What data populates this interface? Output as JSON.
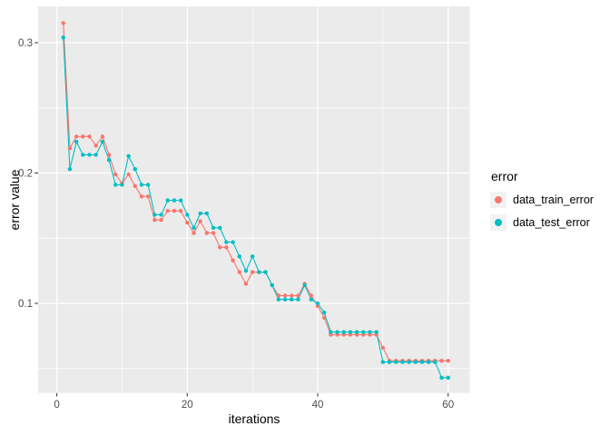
{
  "figure": {
    "background": "#FFFFFF",
    "panel_background": "#EBEBEB",
    "gridline_color": "#FFFFFF",
    "tick_color": "#333333",
    "tick_label_color": "#4D4D4D",
    "axis_title_color": "#000000"
  },
  "axes": {
    "x_title": "iterations",
    "y_title": "error value",
    "x_ticks": [
      0,
      20,
      40,
      60
    ],
    "y_ticks": [
      0.1,
      0.2,
      0.3
    ],
    "x_minor": [
      10,
      30,
      50
    ],
    "y_minor": [
      0.05,
      0.15,
      0.25
    ]
  },
  "legend": {
    "title": "error",
    "key_background": "#F2F2F2",
    "items": [
      {
        "label": "data_train_error",
        "color": "#F8766D"
      },
      {
        "label": "data_test_error",
        "color": "#00BFC4"
      }
    ]
  },
  "chart_data": {
    "type": "line",
    "title": "",
    "xlabel": "iterations",
    "ylabel": "error value",
    "xlim": [
      -2,
      63
    ],
    "ylim": [
      0.032,
      0.328
    ],
    "grid": true,
    "legend_position": "right",
    "marker": "point",
    "x": [
      1,
      2,
      3,
      4,
      5,
      6,
      7,
      8,
      9,
      10,
      11,
      12,
      13,
      14,
      15,
      16,
      17,
      18,
      19,
      20,
      21,
      22,
      23,
      24,
      25,
      26,
      27,
      28,
      29,
      30,
      31,
      32,
      33,
      34,
      35,
      36,
      37,
      38,
      39,
      40,
      41,
      42,
      43,
      44,
      45,
      46,
      47,
      48,
      49,
      50,
      51,
      52,
      53,
      54,
      55,
      56,
      57,
      58,
      59,
      60
    ],
    "series": [
      {
        "name": "data_train_error",
        "color": "#F8766D",
        "values": [
          0.315,
          0.219,
          0.228,
          0.228,
          0.228,
          0.221,
          0.228,
          0.214,
          0.199,
          0.192,
          0.199,
          0.19,
          0.182,
          0.182,
          0.164,
          0.164,
          0.171,
          0.171,
          0.171,
          0.162,
          0.154,
          0.163,
          0.154,
          0.154,
          0.143,
          0.143,
          0.133,
          0.124,
          0.115,
          0.124,
          0.124,
          0.124,
          0.114,
          0.106,
          0.106,
          0.106,
          0.106,
          0.115,
          0.106,
          0.098,
          0.089,
          0.076,
          0.076,
          0.076,
          0.076,
          0.076,
          0.076,
          0.076,
          0.076,
          0.066,
          0.056,
          0.056,
          0.056,
          0.056,
          0.056,
          0.056,
          0.056,
          0.056,
          0.056,
          0.056
        ]
      },
      {
        "name": "data_test_error",
        "color": "#00BFC4",
        "values": [
          0.304,
          0.203,
          0.224,
          0.214,
          0.214,
          0.214,
          0.224,
          0.21,
          0.191,
          0.191,
          0.213,
          0.203,
          0.191,
          0.191,
          0.168,
          0.168,
          0.179,
          0.179,
          0.179,
          0.168,
          0.158,
          0.169,
          0.169,
          0.158,
          0.158,
          0.147,
          0.147,
          0.136,
          0.125,
          0.136,
          0.124,
          0.124,
          0.114,
          0.103,
          0.103,
          0.103,
          0.103,
          0.114,
          0.103,
          0.1,
          0.093,
          0.078,
          0.078,
          0.078,
          0.078,
          0.078,
          0.078,
          0.078,
          0.078,
          0.055,
          0.055,
          0.055,
          0.055,
          0.055,
          0.055,
          0.055,
          0.055,
          0.055,
          0.043,
          0.043
        ]
      }
    ]
  }
}
